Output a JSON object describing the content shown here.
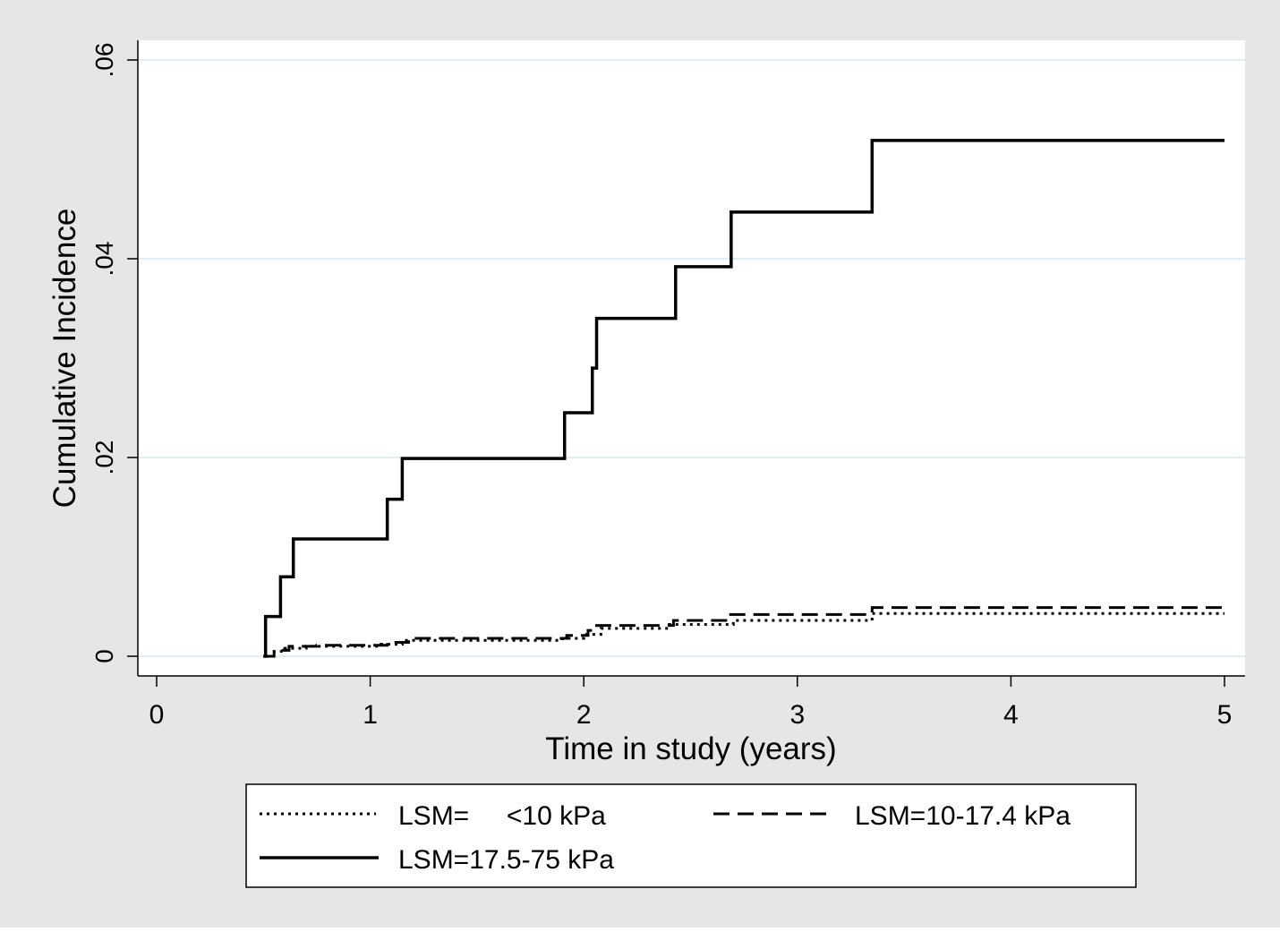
{
  "chart_data": {
    "type": "line",
    "step": true,
    "title": "",
    "xlabel": "Time in study (years)",
    "ylabel": "Cumulative Incidence",
    "xlim": [
      0,
      5
    ],
    "ylim": [
      0,
      0.06
    ],
    "xticks": [
      0,
      1,
      2,
      3,
      4,
      5
    ],
    "xtick_labels": [
      "0",
      "1",
      "2",
      "3",
      "4",
      "5"
    ],
    "yticks": [
      0,
      0.02,
      0.04,
      0.06
    ],
    "ytick_labels": [
      "0",
      ".02",
      ".04",
      ".06"
    ],
    "grid": "horizontal",
    "legend_placement": "bottom",
    "colors": {
      "outer_background": "#e6e6e6",
      "plot_background": "#ffffff",
      "gridline": "#e3ecf1",
      "line": "#000000"
    },
    "series": [
      {
        "name": "LSM=     <10 kPa",
        "style": "dotted",
        "x": [
          0.5,
          0.55,
          0.6,
          0.7,
          1.05,
          1.15,
          1.9,
          2.0,
          2.08,
          2.4,
          2.7,
          3.35,
          5.0
        ],
        "y": [
          0,
          0.0005,
          0.0008,
          0.001,
          0.0012,
          0.0016,
          0.0018,
          0.0022,
          0.0028,
          0.0032,
          0.0036,
          0.0043,
          0.0043
        ]
      },
      {
        "name": "LSM=10-17.4 kPa",
        "style": "dashed",
        "x": [
          0.5,
          0.55,
          0.62,
          0.75,
          1.08,
          1.18,
          1.92,
          2.02,
          2.06,
          2.42,
          2.68,
          3.35,
          5.0
        ],
        "y": [
          0,
          0.0006,
          0.001,
          0.0011,
          0.0014,
          0.0018,
          0.0021,
          0.0026,
          0.0031,
          0.0036,
          0.0042,
          0.0049,
          0.0049
        ]
      },
      {
        "name": "LSM=17.5-75 kPa",
        "style": "solid",
        "x": [
          0.5,
          0.51,
          0.58,
          0.64,
          1.08,
          1.15,
          1.91,
          2.04,
          2.06,
          2.43,
          2.69,
          3.35,
          5.0
        ],
        "y": [
          0,
          0.004,
          0.008,
          0.0118,
          0.0158,
          0.0199,
          0.0245,
          0.029,
          0.034,
          0.0392,
          0.0447,
          0.0519,
          0.0519
        ]
      }
    ]
  }
}
